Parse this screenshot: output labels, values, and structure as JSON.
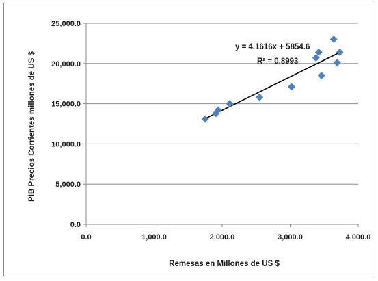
{
  "chart_data": {
    "type": "scatter",
    "title": "",
    "xlabel": "Remesas en Millones de US $",
    "ylabel": "PIB Precios Corrientes  millones de US $",
    "xlim": [
      0,
      4000
    ],
    "ylim": [
      0,
      25000
    ],
    "x_ticks": [
      0,
      1000,
      2000,
      3000,
      4000
    ],
    "y_ticks": [
      0,
      5000,
      10000,
      15000,
      20000,
      25000
    ],
    "x_tick_labels": [
      "0.0",
      "1,000.0",
      "2,000.0",
      "3,000.0",
      "4,000.0"
    ],
    "y_tick_labels": [
      "0.0",
      "5,000.0",
      "10,000.0",
      "15,000.0",
      "20,000.0",
      "25,000.0"
    ],
    "grid": "horizontal",
    "legend": "none",
    "marker": "diamond",
    "marker_color": "#4f81bd",
    "series": [
      {
        "points": [
          {
            "x": 1750,
            "y": 13100
          },
          {
            "x": 1910,
            "y": 13800
          },
          {
            "x": 1940,
            "y": 14200
          },
          {
            "x": 2110,
            "y": 15000
          },
          {
            "x": 2550,
            "y": 15800
          },
          {
            "x": 3020,
            "y": 17100
          },
          {
            "x": 3380,
            "y": 20700
          },
          {
            "x": 3420,
            "y": 21400
          },
          {
            "x": 3460,
            "y": 18500
          },
          {
            "x": 3640,
            "y": 23000
          },
          {
            "x": 3690,
            "y": 20100
          },
          {
            "x": 3730,
            "y": 21400
          }
        ]
      }
    ],
    "trendline": {
      "type": "linear",
      "slope": 4.1616,
      "intercept": 5854.6,
      "x_range": [
        1750,
        3730
      ],
      "color": "#000000",
      "equation": "y = 4.1616x + 5854.6",
      "r_squared": "R² = 0.8993"
    }
  }
}
